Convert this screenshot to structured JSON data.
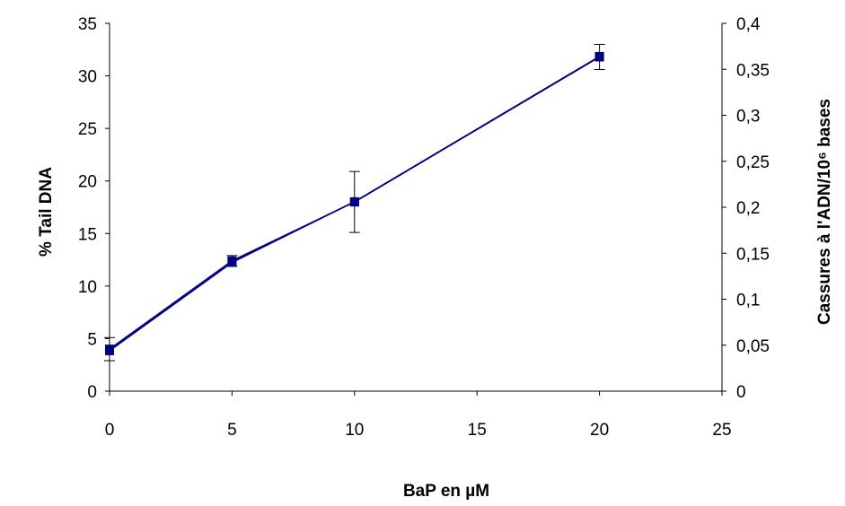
{
  "chart_data": {
    "type": "line",
    "xlabel": "BaP en µM",
    "ylabel": "% Tail DNA",
    "y2label": "Cassures à l'ADN/10⁶ bases",
    "xlim": [
      0,
      25
    ],
    "ylim": [
      0,
      35
    ],
    "y2lim": [
      0,
      0.4
    ],
    "x_ticks": [
      "0",
      "5",
      "10",
      "15",
      "20",
      "25"
    ],
    "y_ticks": [
      "0",
      "5",
      "10",
      "15",
      "20",
      "25",
      "30",
      "35"
    ],
    "y2_ticks": [
      "0",
      "0,05",
      "0,1",
      "0,15",
      "0,2",
      "0,25",
      "0,3",
      "0,35",
      "0,4"
    ],
    "grid": false,
    "legend": "none",
    "series": [
      {
        "axis": "left",
        "x": [
          0,
          5,
          10,
          20
        ],
        "y": [
          4.0,
          12.4,
          18.0,
          31.8
        ],
        "err": [
          1.1,
          0.5,
          2.9,
          1.2
        ],
        "color": "#000080",
        "marker": "square"
      },
      {
        "axis": "right",
        "x": [
          0,
          5,
          10,
          20
        ],
        "y": [
          0.044,
          0.14,
          0.206,
          0.364
        ],
        "color": "#000080",
        "marker": "square"
      }
    ]
  }
}
